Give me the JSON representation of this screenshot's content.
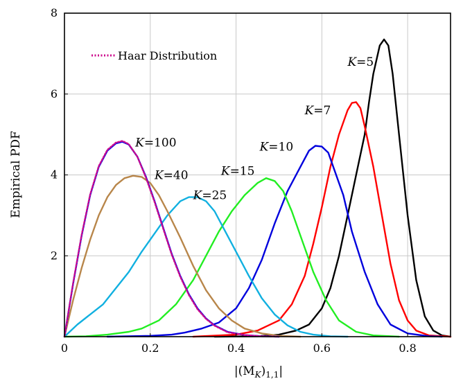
{
  "chart_data": {
    "type": "line",
    "title": "",
    "xlabel": "|(M",
    "xlabel_sub": "K",
    "xlabel_tail": ")",
    "xlabel_sub2": "1,1",
    "xlabel_end": "|",
    "ylabel": "Empirical PDF",
    "xlim": [
      0,
      0.9
    ],
    "ylim": [
      0,
      8
    ],
    "x_ticks": [
      0,
      0.2,
      0.4,
      0.6,
      0.8
    ],
    "x_tick_labels": [
      "0",
      "0.2",
      "0.4",
      "0.6",
      "0.8"
    ],
    "y_ticks": [
      2,
      4,
      6,
      8
    ],
    "y_tick_labels": [
      "2",
      "4",
      "6",
      "8"
    ],
    "x_grid_lines": [
      0.2,
      0.4,
      0.6,
      0.8
    ],
    "y_grid_lines": [
      2,
      4,
      6
    ],
    "grid": true,
    "legend": {
      "placement": "top-left",
      "entries": [
        {
          "label": "Haar Distribution",
          "color": "#cc0a8c",
          "style": "dotted"
        }
      ]
    },
    "series": [
      {
        "name": "K=5",
        "color": "#000000",
        "label_at": [
          0.66,
          6.7
        ],
        "points": [
          [
            0.35,
            0
          ],
          [
            0.45,
            0.01
          ],
          [
            0.5,
            0.05
          ],
          [
            0.54,
            0.15
          ],
          [
            0.57,
            0.3
          ],
          [
            0.6,
            0.7
          ],
          [
            0.62,
            1.2
          ],
          [
            0.64,
            2.0
          ],
          [
            0.66,
            3.0
          ],
          [
            0.68,
            4.0
          ],
          [
            0.7,
            5.0
          ],
          [
            0.71,
            5.8
          ],
          [
            0.72,
            6.5
          ],
          [
            0.735,
            7.2
          ],
          [
            0.745,
            7.35
          ],
          [
            0.755,
            7.2
          ],
          [
            0.765,
            6.5
          ],
          [
            0.78,
            5.0
          ],
          [
            0.8,
            3.0
          ],
          [
            0.82,
            1.4
          ],
          [
            0.84,
            0.5
          ],
          [
            0.86,
            0.15
          ],
          [
            0.88,
            0.03
          ],
          [
            0.9,
            0
          ]
        ]
      },
      {
        "name": "K=7",
        "color": "#ff0000",
        "label_at": [
          0.56,
          5.5
        ],
        "points": [
          [
            0.3,
            0
          ],
          [
            0.4,
            0.05
          ],
          [
            0.45,
            0.15
          ],
          [
            0.5,
            0.4
          ],
          [
            0.53,
            0.8
          ],
          [
            0.56,
            1.5
          ],
          [
            0.58,
            2.3
          ],
          [
            0.6,
            3.2
          ],
          [
            0.62,
            4.2
          ],
          [
            0.64,
            5.0
          ],
          [
            0.66,
            5.6
          ],
          [
            0.67,
            5.78
          ],
          [
            0.68,
            5.8
          ],
          [
            0.69,
            5.65
          ],
          [
            0.7,
            5.2
          ],
          [
            0.72,
            4.2
          ],
          [
            0.74,
            3.0
          ],
          [
            0.76,
            1.8
          ],
          [
            0.78,
            0.9
          ],
          [
            0.8,
            0.4
          ],
          [
            0.82,
            0.15
          ],
          [
            0.85,
            0.03
          ],
          [
            0.9,
            0
          ]
        ]
      },
      {
        "name": "K=10",
        "color": "#0000dd",
        "label_at": [
          0.455,
          4.6
        ],
        "points": [
          [
            0.1,
            0
          ],
          [
            0.2,
            0.02
          ],
          [
            0.25,
            0.05
          ],
          [
            0.28,
            0.1
          ],
          [
            0.32,
            0.2
          ],
          [
            0.36,
            0.35
          ],
          [
            0.4,
            0.7
          ],
          [
            0.43,
            1.2
          ],
          [
            0.46,
            1.9
          ],
          [
            0.49,
            2.8
          ],
          [
            0.52,
            3.6
          ],
          [
            0.55,
            4.2
          ],
          [
            0.57,
            4.6
          ],
          [
            0.585,
            4.72
          ],
          [
            0.6,
            4.7
          ],
          [
            0.615,
            4.55
          ],
          [
            0.63,
            4.1
          ],
          [
            0.65,
            3.5
          ],
          [
            0.67,
            2.6
          ],
          [
            0.7,
            1.6
          ],
          [
            0.73,
            0.8
          ],
          [
            0.76,
            0.3
          ],
          [
            0.8,
            0.08
          ],
          [
            0.85,
            0.01
          ],
          [
            0.88,
            0
          ]
        ]
      },
      {
        "name": "K=15",
        "color": "#22ee22",
        "label_at": [
          0.365,
          4.0
        ],
        "points": [
          [
            0.0,
            0
          ],
          [
            0.05,
            0.01
          ],
          [
            0.1,
            0.05
          ],
          [
            0.15,
            0.12
          ],
          [
            0.18,
            0.2
          ],
          [
            0.22,
            0.4
          ],
          [
            0.26,
            0.8
          ],
          [
            0.3,
            1.4
          ],
          [
            0.33,
            2.0
          ],
          [
            0.36,
            2.6
          ],
          [
            0.39,
            3.1
          ],
          [
            0.42,
            3.5
          ],
          [
            0.45,
            3.8
          ],
          [
            0.47,
            3.92
          ],
          [
            0.49,
            3.85
          ],
          [
            0.51,
            3.6
          ],
          [
            0.53,
            3.1
          ],
          [
            0.55,
            2.5
          ],
          [
            0.58,
            1.6
          ],
          [
            0.61,
            0.9
          ],
          [
            0.64,
            0.4
          ],
          [
            0.68,
            0.12
          ],
          [
            0.72,
            0.03
          ],
          [
            0.78,
            0
          ]
        ]
      },
      {
        "name": "K=25",
        "color": "#11b0e0",
        "label_at": [
          0.3,
          3.4
        ],
        "points": [
          [
            0.0,
            0
          ],
          [
            0.03,
            0.3
          ],
          [
            0.06,
            0.55
          ],
          [
            0.09,
            0.8
          ],
          [
            0.12,
            1.2
          ],
          [
            0.15,
            1.6
          ],
          [
            0.18,
            2.1
          ],
          [
            0.21,
            2.55
          ],
          [
            0.24,
            3.0
          ],
          [
            0.27,
            3.35
          ],
          [
            0.29,
            3.45
          ],
          [
            0.31,
            3.45
          ],
          [
            0.33,
            3.35
          ],
          [
            0.35,
            3.1
          ],
          [
            0.37,
            2.7
          ],
          [
            0.4,
            2.1
          ],
          [
            0.43,
            1.5
          ],
          [
            0.46,
            0.95
          ],
          [
            0.49,
            0.55
          ],
          [
            0.52,
            0.28
          ],
          [
            0.55,
            0.12
          ],
          [
            0.58,
            0.05
          ],
          [
            0.62,
            0.01
          ],
          [
            0.66,
            0
          ]
        ]
      },
      {
        "name": "K=40",
        "color": "#b8864a",
        "label_at": [
          0.21,
          3.9
        ],
        "points": [
          [
            0.0,
            0
          ],
          [
            0.02,
            0.9
          ],
          [
            0.04,
            1.7
          ],
          [
            0.06,
            2.4
          ],
          [
            0.08,
            3.0
          ],
          [
            0.1,
            3.45
          ],
          [
            0.12,
            3.75
          ],
          [
            0.14,
            3.92
          ],
          [
            0.16,
            3.98
          ],
          [
            0.18,
            3.95
          ],
          [
            0.2,
            3.8
          ],
          [
            0.22,
            3.5
          ],
          [
            0.24,
            3.1
          ],
          [
            0.27,
            2.45
          ],
          [
            0.3,
            1.75
          ],
          [
            0.33,
            1.15
          ],
          [
            0.36,
            0.7
          ],
          [
            0.39,
            0.4
          ],
          [
            0.42,
            0.2
          ],
          [
            0.46,
            0.08
          ],
          [
            0.5,
            0.02
          ],
          [
            0.55,
            0
          ]
        ]
      },
      {
        "name": "K=100",
        "color": "#0000ee",
        "label_at": [
          0.165,
          4.7
        ],
        "points": [
          [
            0.0,
            0
          ],
          [
            0.02,
            1.3
          ],
          [
            0.04,
            2.5
          ],
          [
            0.06,
            3.5
          ],
          [
            0.08,
            4.2
          ],
          [
            0.1,
            4.6
          ],
          [
            0.12,
            4.78
          ],
          [
            0.135,
            4.82
          ],
          [
            0.15,
            4.75
          ],
          [
            0.17,
            4.45
          ],
          [
            0.19,
            3.95
          ],
          [
            0.21,
            3.35
          ],
          [
            0.23,
            2.7
          ],
          [
            0.25,
            2.05
          ],
          [
            0.27,
            1.5
          ],
          [
            0.29,
            1.05
          ],
          [
            0.31,
            0.7
          ],
          [
            0.33,
            0.45
          ],
          [
            0.35,
            0.28
          ],
          [
            0.38,
            0.12
          ],
          [
            0.42,
            0.04
          ],
          [
            0.46,
            0.01
          ],
          [
            0.5,
            0
          ]
        ]
      }
    ],
    "haar_series": {
      "name": "Haar Distribution",
      "color": "#cc0a8c",
      "points": [
        [
          0.0,
          0
        ],
        [
          0.02,
          1.32
        ],
        [
          0.04,
          2.52
        ],
        [
          0.06,
          3.52
        ],
        [
          0.08,
          4.22
        ],
        [
          0.1,
          4.62
        ],
        [
          0.12,
          4.8
        ],
        [
          0.135,
          4.84
        ],
        [
          0.15,
          4.76
        ],
        [
          0.17,
          4.45
        ],
        [
          0.19,
          3.93
        ],
        [
          0.21,
          3.33
        ],
        [
          0.23,
          2.68
        ],
        [
          0.25,
          2.03
        ],
        [
          0.27,
          1.48
        ],
        [
          0.29,
          1.03
        ],
        [
          0.31,
          0.68
        ],
        [
          0.33,
          0.44
        ],
        [
          0.35,
          0.27
        ],
        [
          0.38,
          0.11
        ],
        [
          0.42,
          0.04
        ],
        [
          0.46,
          0.01
        ],
        [
          0.5,
          0
        ]
      ]
    }
  }
}
